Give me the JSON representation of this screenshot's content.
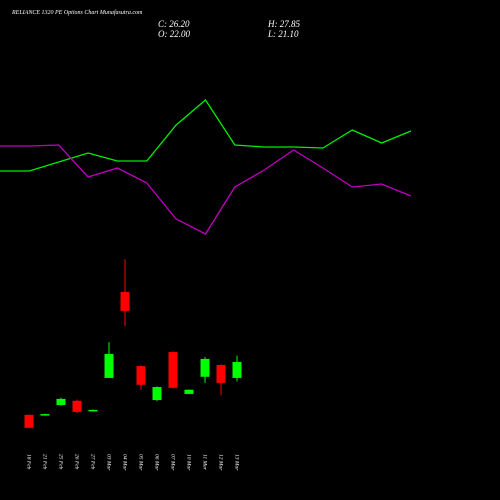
{
  "chart_data": [
    {
      "type": "candlestick",
      "title": "RELIANCE 1320 PE Options Chart Munafasutra.com",
      "info": [
        "C: 26.20",
        "H: 27.85",
        "O: 22.00",
        "L: 21.10"
      ],
      "categories": [
        "18 Feb",
        "21 Feb",
        "25 Feb",
        "26 Feb",
        "27 Feb",
        "03 Mar",
        "04 Mar",
        "05 Mar",
        "06 Mar",
        "07 Mar",
        "10 Mar",
        "11 Mar",
        "12 Mar",
        "13 Mar"
      ],
      "open": [
        12.3,
        12.2,
        14.9,
        16.0,
        13.3,
        22.0,
        44.6,
        25.1,
        16.2,
        28.8,
        17.8,
        22.3,
        25.4,
        22.0
      ],
      "high": [
        12.4,
        12.6,
        16.8,
        16.3,
        13.7,
        31.4,
        53.2,
        25.3,
        19.8,
        29.0,
        19.0,
        27.5,
        25.6,
        27.85
      ],
      "low": [
        8.8,
        12.1,
        14.7,
        12.8,
        13.2,
        22.0,
        35.6,
        18.9,
        15.9,
        19.2,
        17.7,
        20.7,
        17.5,
        21.1
      ],
      "close": [
        8.9,
        12.5,
        16.5,
        13.1,
        13.6,
        28.3,
        39.6,
        20.2,
        19.6,
        19.4,
        18.9,
        27.0,
        20.7,
        26.2
      ],
      "up_color": "#00ff00",
      "down_color": "#ff0000",
      "ylim": [
        5.7,
        55.6
      ]
    },
    {
      "type": "line",
      "x": [
        0,
        1,
        2,
        3,
        4,
        5,
        6,
        7,
        8,
        9,
        10,
        11,
        12,
        13,
        14
      ],
      "xlim": [
        0,
        14
      ],
      "ylim": [
        0,
        170
      ],
      "series": [
        {
          "color": "#00ee00",
          "values": [
            89,
            89,
            98,
            107,
            99,
            99,
            135,
            160,
            115,
            113,
            113,
            112,
            130,
            117,
            129
          ]
        },
        {
          "color": "#c000c0",
          "values": [
            114,
            114,
            115,
            83,
            92,
            77,
            41,
            26,
            73,
            90,
            110,
            92,
            73,
            76,
            64
          ]
        }
      ]
    }
  ]
}
